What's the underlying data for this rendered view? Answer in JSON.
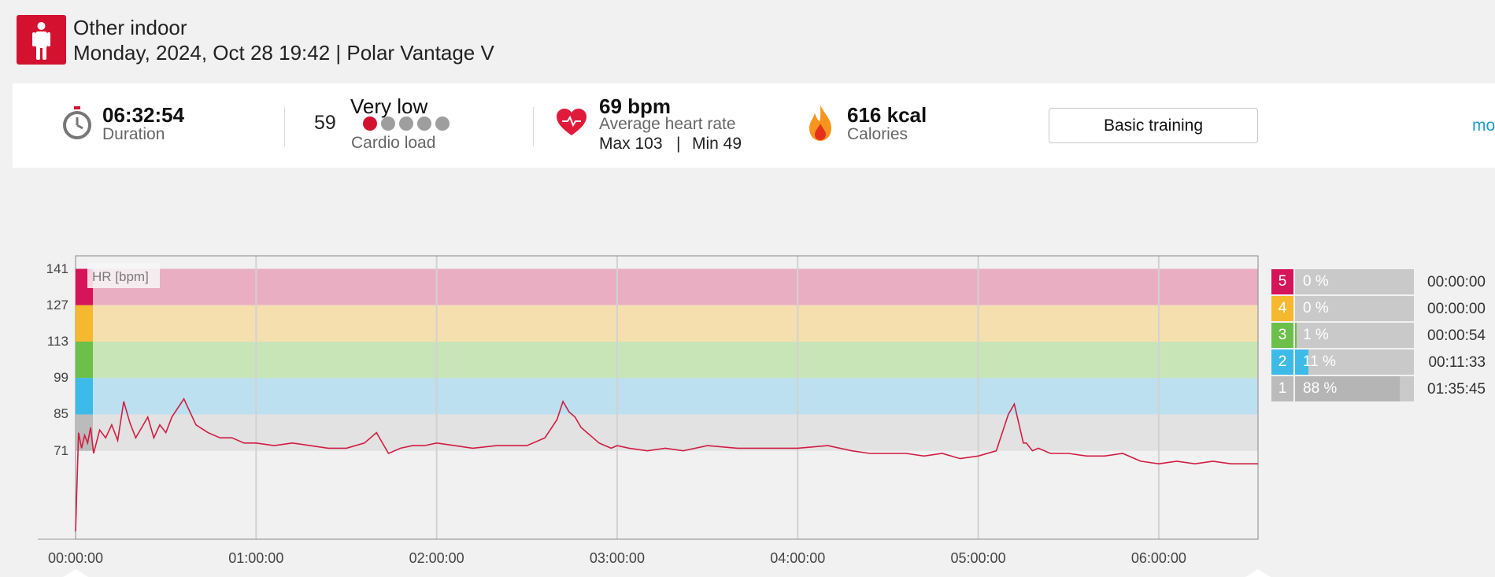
{
  "header": {
    "sport": "Other indoor",
    "subtitle": "Monday, 2024, Oct 28 19:42 | Polar Vantage V",
    "sport_icon": "person-standing-icon"
  },
  "summary": {
    "duration_value": "06:32:54",
    "duration_label": "Duration",
    "cardio_load_value": "59",
    "cardio_load_level": "Very low",
    "cardio_load_label": "Cardio load",
    "cardio_load_dots": 1,
    "hr_value": "69 bpm",
    "hr_label": "Average heart rate",
    "hr_max": "Max 103",
    "hr_sep": "|",
    "hr_min": "Min 49",
    "calories_value": "616 kcal",
    "calories_label": "Calories",
    "training_button": "Basic training",
    "more_link": "mo"
  },
  "colors": {
    "brand": "#d4122f",
    "zone5": "#d5145a",
    "zone4": "#f5b82e",
    "zone3": "#6cc04a",
    "zone2": "#3dbbe8",
    "zone1": "#bbbbbb",
    "hr_line": "#d01d41"
  },
  "chart_data": {
    "type": "line",
    "series": [
      {
        "name": "HR [bpm]",
        "x_minutes": [
          0,
          1,
          2,
          3,
          4,
          5,
          6,
          8,
          10,
          12,
          14,
          16,
          18,
          19,
          20,
          22,
          24,
          26,
          28,
          30,
          32,
          36,
          40,
          44,
          48,
          52,
          56,
          60,
          66,
          72,
          78,
          84,
          90,
          96,
          100,
          104,
          108,
          112,
          116,
          120,
          126,
          132,
          140,
          150,
          156,
          160,
          162,
          164,
          166,
          168,
          170,
          172,
          174,
          176,
          178,
          180,
          184,
          190,
          196,
          202,
          210,
          220,
          230,
          240,
          250,
          258,
          264,
          270,
          276,
          282,
          288,
          294,
          300,
          306,
          310,
          312,
          314,
          315,
          316,
          318,
          320,
          324,
          330,
          336,
          342,
          348,
          354,
          360,
          366,
          372,
          378,
          384,
          390,
          393
        ],
        "y": [
          40,
          78,
          72,
          77,
          74,
          80,
          70,
          79,
          76,
          81,
          75,
          90,
          82,
          79,
          76,
          80,
          84,
          76,
          81,
          78,
          84,
          91,
          81,
          78,
          76,
          76,
          74,
          74,
          73,
          74,
          73,
          72,
          72,
          74,
          78,
          70,
          72,
          73,
          73,
          74,
          73,
          72,
          73,
          73,
          76,
          83,
          90,
          86,
          84,
          80,
          78,
          76,
          74,
          73,
          72,
          73,
          72,
          71,
          72,
          71,
          73,
          72,
          72,
          72,
          73,
          71,
          70,
          70,
          70,
          69,
          70,
          68,
          69,
          71,
          85,
          89,
          79,
          74,
          74,
          71,
          72,
          70,
          70,
          69,
          69,
          70,
          67,
          66,
          67,
          66,
          67,
          66,
          66,
          66
        ]
      }
    ],
    "ylabel": "HR [bpm]",
    "ylim": [
      37,
      146
    ],
    "xlim_minutes": [
      0,
      393
    ],
    "y_ticks": [
      "141",
      "127",
      "113",
      "99",
      "85",
      "71"
    ],
    "x_ticks": [
      "00:00:00",
      "01:00:00",
      "02:00:00",
      "03:00:00",
      "04:00:00",
      "05:00:00",
      "06:00:00"
    ],
    "zone_bands": [
      {
        "zone": 5,
        "from": 127,
        "to": 141
      },
      {
        "zone": 4,
        "from": 113,
        "to": 127
      },
      {
        "zone": 3,
        "from": 99,
        "to": 113
      },
      {
        "zone": 2,
        "from": 85,
        "to": 99
      },
      {
        "zone": 1,
        "from": 71,
        "to": 85
      }
    ],
    "grid": true
  },
  "zones": [
    {
      "zone": "5",
      "percent": "0 %",
      "fraction": 0.0,
      "time": "00:00:00"
    },
    {
      "zone": "4",
      "percent": "0 %",
      "fraction": 0.0,
      "time": "00:00:00"
    },
    {
      "zone": "3",
      "percent": "1 %",
      "fraction": 0.01,
      "time": "00:00:54"
    },
    {
      "zone": "2",
      "percent": "11 %",
      "fraction": 0.11,
      "time": "00:11:33"
    },
    {
      "zone": "1",
      "percent": "88 %",
      "fraction": 0.88,
      "time": "01:35:45"
    }
  ]
}
